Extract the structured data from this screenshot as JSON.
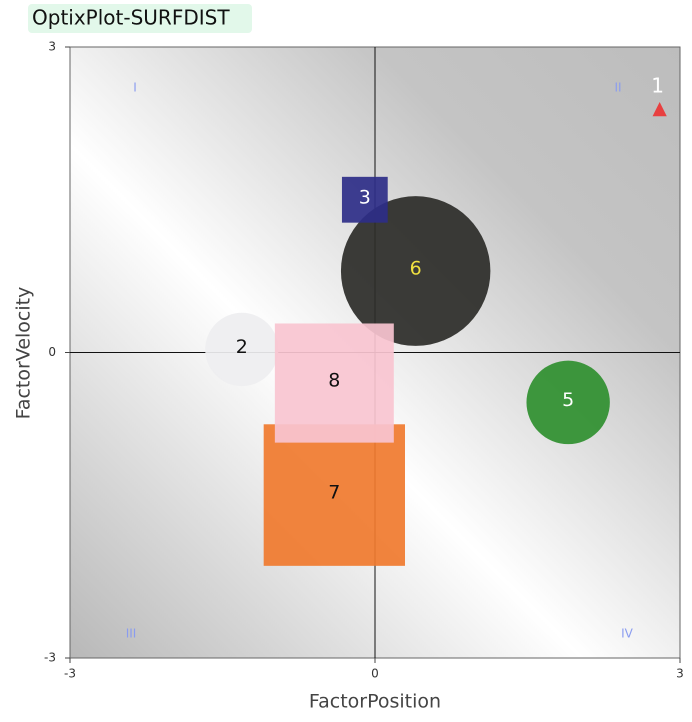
{
  "chart_data": {
    "type": "bubble",
    "title": "OptixPlot-SURFDIST",
    "x_label": "FactorPosition",
    "y_label": "FactorVelocity",
    "xlim": [
      -3,
      3
    ],
    "ylim": [
      -3,
      3
    ],
    "xticks": [
      -3,
      0,
      3
    ],
    "yticks": [
      -3,
      0,
      3
    ],
    "quadrant_labels": [
      "I",
      "II",
      "III",
      "IV"
    ],
    "series": [
      {
        "name": "2",
        "shape": "circle",
        "color": "#eeeef0",
        "label_color": "#111111",
        "x": [
          -1.31
        ],
        "y": [
          0.03
        ],
        "size": [
          0.72
        ]
      },
      {
        "name": "6",
        "shape": "circle",
        "color": "#2b2b28",
        "label_color": "#f0e040",
        "x": [
          0.4
        ],
        "y": [
          0.8
        ],
        "size": [
          1.47
        ]
      },
      {
        "name": "3",
        "shape": "square",
        "color": "#2e2e88",
        "label_color": "#ffffff",
        "x": [
          -0.1
        ],
        "y": [
          1.5
        ],
        "size": [
          0.45
        ]
      },
      {
        "name": "7",
        "shape": "square",
        "color": "#f07a2e",
        "label_color": "#111111",
        "x": [
          -0.4
        ],
        "y": [
          -1.4
        ],
        "size": [
          1.39
        ]
      },
      {
        "name": "8",
        "shape": "square",
        "color": "#f8c4d0",
        "label_color": "#111111",
        "x": [
          -0.4
        ],
        "y": [
          -0.3
        ],
        "size": [
          1.17
        ]
      },
      {
        "name": "5",
        "shape": "circle",
        "color": "#2f8f2f",
        "label_color": "#ffffff",
        "x": [
          1.9
        ],
        "y": [
          -0.49
        ],
        "size": [
          0.82
        ]
      },
      {
        "name": "1",
        "shape": "triangle",
        "color": "#e84040",
        "label_color": "#ffffff",
        "x": [
          2.8
        ],
        "y": [
          2.39
        ],
        "size": [
          0.14
        ]
      }
    ]
  }
}
